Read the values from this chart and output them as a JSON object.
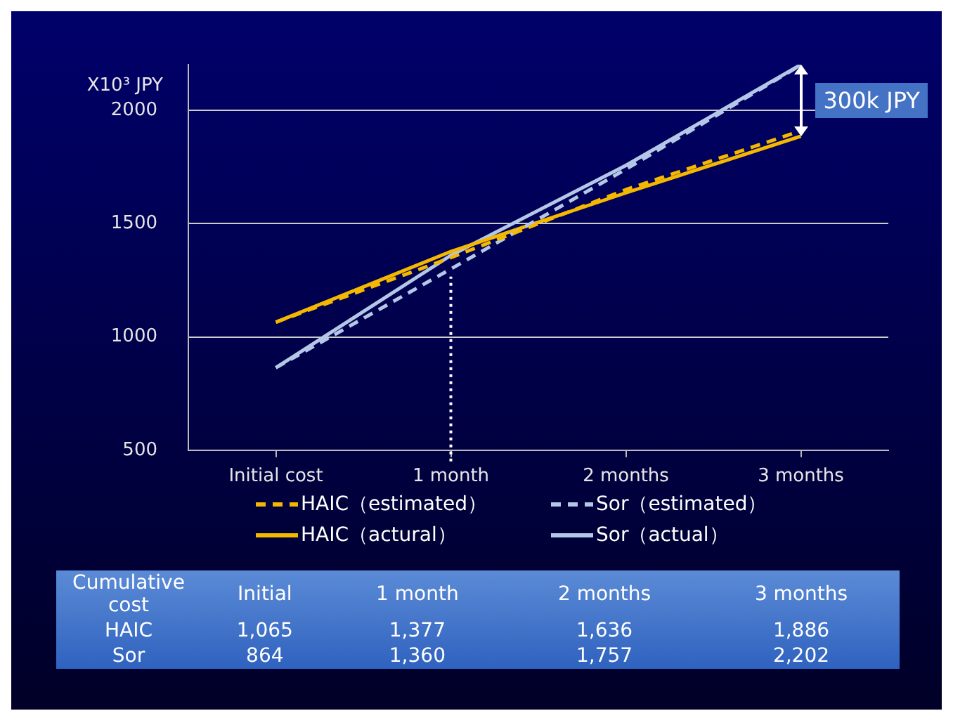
{
  "chart_data": {
    "type": "line",
    "ylabel": "X10³ JPY",
    "categories": [
      "Initial cost",
      "1 month",
      "2 months",
      "3 months"
    ],
    "series": [
      {
        "name": "HAIC（estimated）",
        "color": "#f5b800",
        "line_style": "dashed",
        "values": [
          1065,
          1350,
          1650,
          1910
        ]
      },
      {
        "name": "Sor（estimated）",
        "color": "#b4c7e7",
        "line_style": "dashed",
        "values": [
          864,
          1300,
          1740,
          2200
        ]
      },
      {
        "name": "HAIC（actural）",
        "color": "#f5b800",
        "line_style": "solid",
        "values": [
          1065,
          1377,
          1636,
          1886
        ],
        "value_labels": [
          "1,065",
          "1,377",
          "1,636",
          "1,886"
        ]
      },
      {
        "name": "Sor（actual）",
        "color": "#b4c7e7",
        "line_style": "solid",
        "values": [
          864,
          1360,
          1757,
          2202
        ],
        "value_labels": [
          "864",
          "1,360",
          "1,757",
          "2,202"
        ]
      }
    ],
    "ylim": [
      500,
      2202
    ],
    "yticks": [
      500,
      1000,
      1500,
      2000
    ],
    "grid": "y",
    "legend": "bottom",
    "marker": "none",
    "ref_lines": [
      {
        "axis": "x",
        "value": "1 month",
        "line_style": "dotted",
        "color": "#ffffff"
      }
    ],
    "annotations": [
      "300k JPY",
      "Cumulative cost",
      "Initial",
      "HAIC",
      "Sor"
    ]
  }
}
